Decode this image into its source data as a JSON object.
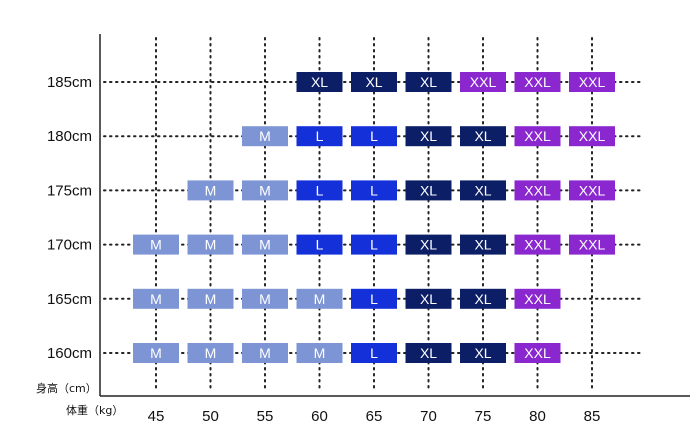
{
  "chart_data": {
    "type": "table",
    "y_axis_label": "身高（cm）",
    "x_axis_label": "体重（kg）",
    "heights": [
      "185cm",
      "180cm",
      "175cm",
      "170cm",
      "165cm",
      "160cm"
    ],
    "weights": [
      "45",
      "50",
      "55",
      "60",
      "65",
      "70",
      "75",
      "80",
      "85"
    ],
    "cells": [
      {
        "height": "185cm",
        "weight": "60",
        "size": "XL"
      },
      {
        "height": "185cm",
        "weight": "65",
        "size": "XL"
      },
      {
        "height": "185cm",
        "weight": "70",
        "size": "XL"
      },
      {
        "height": "185cm",
        "weight": "75",
        "size": "XXL"
      },
      {
        "height": "185cm",
        "weight": "80",
        "size": "XXL"
      },
      {
        "height": "185cm",
        "weight": "85",
        "size": "XXL"
      },
      {
        "height": "180cm",
        "weight": "55",
        "size": "M"
      },
      {
        "height": "180cm",
        "weight": "60",
        "size": "L"
      },
      {
        "height": "180cm",
        "weight": "65",
        "size": "L"
      },
      {
        "height": "180cm",
        "weight": "70",
        "size": "XL"
      },
      {
        "height": "180cm",
        "weight": "75",
        "size": "XL"
      },
      {
        "height": "180cm",
        "weight": "80",
        "size": "XXL"
      },
      {
        "height": "180cm",
        "weight": "85",
        "size": "XXL"
      },
      {
        "height": "175cm",
        "weight": "50",
        "size": "M"
      },
      {
        "height": "175cm",
        "weight": "55",
        "size": "M"
      },
      {
        "height": "175cm",
        "weight": "60",
        "size": "L"
      },
      {
        "height": "175cm",
        "weight": "65",
        "size": "L"
      },
      {
        "height": "175cm",
        "weight": "70",
        "size": "XL"
      },
      {
        "height": "175cm",
        "weight": "75",
        "size": "XL"
      },
      {
        "height": "175cm",
        "weight": "80",
        "size": "XXL"
      },
      {
        "height": "175cm",
        "weight": "85",
        "size": "XXL"
      },
      {
        "height": "170cm",
        "weight": "45",
        "size": "M"
      },
      {
        "height": "170cm",
        "weight": "50",
        "size": "M"
      },
      {
        "height": "170cm",
        "weight": "55",
        "size": "M"
      },
      {
        "height": "170cm",
        "weight": "60",
        "size": "L"
      },
      {
        "height": "170cm",
        "weight": "65",
        "size": "L"
      },
      {
        "height": "170cm",
        "weight": "70",
        "size": "XL"
      },
      {
        "height": "170cm",
        "weight": "75",
        "size": "XL"
      },
      {
        "height": "170cm",
        "weight": "80",
        "size": "XXL"
      },
      {
        "height": "170cm",
        "weight": "85",
        "size": "XXL"
      },
      {
        "height": "165cm",
        "weight": "45",
        "size": "M"
      },
      {
        "height": "165cm",
        "weight": "50",
        "size": "M"
      },
      {
        "height": "165cm",
        "weight": "55",
        "size": "M"
      },
      {
        "height": "165cm",
        "weight": "60",
        "size": "M"
      },
      {
        "height": "165cm",
        "weight": "65",
        "size": "L"
      },
      {
        "height": "165cm",
        "weight": "70",
        "size": "XL"
      },
      {
        "height": "165cm",
        "weight": "75",
        "size": "XL"
      },
      {
        "height": "165cm",
        "weight": "80",
        "size": "XXL"
      },
      {
        "height": "160cm",
        "weight": "45",
        "size": "M"
      },
      {
        "height": "160cm",
        "weight": "50",
        "size": "M"
      },
      {
        "height": "160cm",
        "weight": "55",
        "size": "M"
      },
      {
        "height": "160cm",
        "weight": "60",
        "size": "M"
      },
      {
        "height": "160cm",
        "weight": "65",
        "size": "L"
      },
      {
        "height": "160cm",
        "weight": "70",
        "size": "XL"
      },
      {
        "height": "160cm",
        "weight": "75",
        "size": "XL"
      },
      {
        "height": "160cm",
        "weight": "80",
        "size": "XXL"
      }
    ],
    "size_colors": {
      "M": "#7d95d4",
      "L": "#1330d9",
      "XL": "#0c1e66",
      "XXL": "#8a27cf"
    },
    "grid": "dotted"
  }
}
